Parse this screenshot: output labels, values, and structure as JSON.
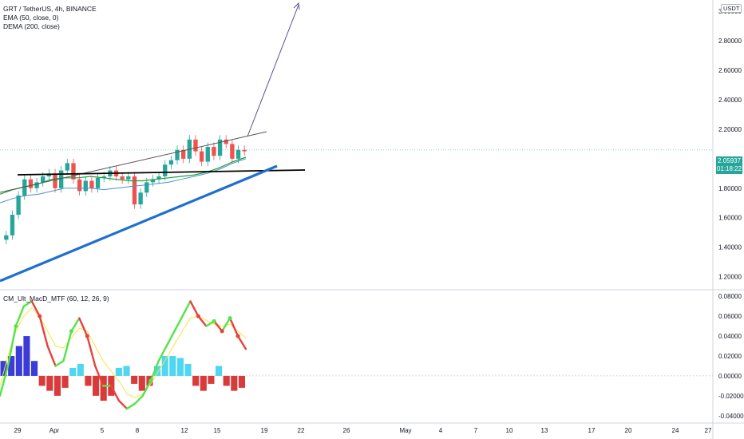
{
  "header": {
    "symbol_line": "GRT / TetherUS, 4h, BINANCE",
    "ema_line": "EMA (50, close, 0)",
    "dema_line": "DEMA (200, close)",
    "macd_line": "CM_Ult_MacD_MTF (60, 12, 26, 9)"
  },
  "price_axis": {
    "currency": "USDT",
    "top_label": "3.00000",
    "current_price": "2.05937",
    "countdown": "01:18:22"
  },
  "colors": {
    "up": "#26a69a",
    "down": "#ef5350",
    "ema": "#1e9c3c",
    "dema": "#4a90c8",
    "trend_blue": "#1f6fd0",
    "macd_up": "#55e34a",
    "macd_down": "#e8413b",
    "signal": "#f5e642",
    "hist_blue": "#3b3bd8",
    "hist_cyan": "#4fd6f0",
    "hist_red": "#d93b3b"
  },
  "chart_data": [
    {
      "type": "candlestick",
      "title": "GRT / TetherUS, 4h, BINANCE",
      "ylim": [
        1.1,
        3.05
      ],
      "y_ticks": [
        "1.20000",
        "1.40000",
        "1.60000",
        "1.80000",
        "2.00000",
        "2.20000",
        "2.40000",
        "2.60000",
        "2.80000",
        "3.00000"
      ],
      "y_tick_values": [
        1.2,
        1.4,
        1.6,
        1.8,
        2.0,
        2.2,
        2.4,
        2.6,
        2.8,
        3.0
      ],
      "x_ticks": [
        "29",
        "Apr",
        "5",
        "8",
        "12",
        "15",
        "19",
        "22",
        "26",
        "May",
        "4",
        "7",
        "10",
        "13",
        "17",
        "20",
        "24",
        "27"
      ],
      "series": [
        {
          "name": "EMA (50, close, 0)",
          "values": [
            1.76,
            1.79,
            1.81,
            1.83,
            1.86,
            1.87,
            1.87,
            1.88,
            1.87,
            1.86,
            1.85,
            1.85,
            1.86,
            1.87,
            1.88,
            1.89,
            1.91,
            1.94,
            1.98,
            2.01
          ]
        },
        {
          "name": "DEMA (200, close)",
          "values": [
            1.7,
            1.73,
            1.75,
            1.76,
            1.78,
            1.8,
            1.8,
            1.8,
            1.79,
            1.8,
            1.81,
            1.82,
            1.83,
            1.84,
            1.86,
            1.88,
            1.9,
            1.93,
            1.97,
            2.0
          ]
        }
      ],
      "ohlc_close_path": [
        1.48,
        1.62,
        1.75,
        1.86,
        1.8,
        1.84,
        1.88,
        1.9,
        1.8,
        1.92,
        1.97,
        1.86,
        1.78,
        1.85,
        1.8,
        1.87,
        1.88,
        1.92,
        1.88,
        1.86,
        1.88,
        1.69,
        1.77,
        1.84,
        1.86,
        1.88,
        1.96,
        1.99,
        2.06,
        2.0,
        2.13,
        2.05,
        1.98,
        2.08,
        2.02,
        2.13,
        2.1,
        2.0,
        2.06,
        2.05
      ]
    },
    {
      "type": "line",
      "title": "CM_Ult_MacD_MTF (60, 12, 26, 9)",
      "ylim": [
        -0.045,
        0.085
      ],
      "y_ticks": [
        "0.08000",
        "0.06000",
        "0.04000",
        "0.02000",
        "0.00000",
        "-0.02000",
        "-0.04000"
      ],
      "y_tick_values": [
        0.08,
        0.06,
        0.04,
        0.02,
        0.0,
        -0.02,
        -0.04
      ],
      "series": [
        {
          "name": "MACD",
          "values": [
            -0.02,
            0.01,
            0.05,
            0.07,
            0.075,
            0.06,
            0.03,
            0.01,
            0.015,
            0.045,
            0.058,
            0.04,
            0.01,
            -0.01,
            -0.01,
            -0.025,
            -0.033,
            -0.028,
            -0.02,
            -0.005,
            0.015,
            0.03,
            0.045,
            0.06,
            0.075,
            0.06,
            0.05,
            0.055,
            0.045,
            0.058,
            0.04,
            0.027
          ]
        },
        {
          "name": "Signal",
          "values": [
            -0.01,
            0.02,
            0.045,
            0.06,
            0.068,
            0.06,
            0.045,
            0.03,
            0.028,
            0.038,
            0.048,
            0.045,
            0.03,
            0.015,
            0.005,
            -0.005,
            -0.018,
            -0.022,
            -0.018,
            -0.008,
            0.005,
            0.018,
            0.032,
            0.045,
            0.058,
            0.06,
            0.056,
            0.052,
            0.05,
            0.052,
            0.045,
            0.038
          ]
        },
        {
          "name": "Histogram",
          "values": [
            0.015,
            0.02,
            0.03,
            0.04,
            0.015,
            -0.01,
            -0.015,
            -0.02,
            -0.012,
            0.008,
            0.012,
            -0.01,
            -0.02,
            -0.025,
            -0.02,
            0.008,
            0.01,
            -0.008,
            -0.015,
            -0.01,
            0.01,
            0.02,
            0.02,
            0.018,
            0.012,
            -0.01,
            -0.015,
            -0.008,
            0.01,
            -0.01,
            -0.015,
            -0.012
          ]
        }
      ]
    }
  ]
}
